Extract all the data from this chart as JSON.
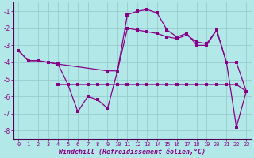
{
  "xlabel": "Windchill (Refroidissement éolien,°C)",
  "bg_color": "#b2e8e8",
  "line_color": "#880088",
  "grid_color": "#99cccc",
  "xlim": [
    -0.5,
    23.5
  ],
  "ylim": [
    -8.5,
    -0.5
  ],
  "yticks": [
    -8,
    -7,
    -6,
    -5,
    -4,
    -3,
    -2,
    -1
  ],
  "xticks": [
    0,
    1,
    2,
    3,
    4,
    5,
    6,
    7,
    8,
    9,
    10,
    11,
    12,
    13,
    14,
    15,
    16,
    17,
    18,
    19,
    20,
    21,
    22,
    23
  ],
  "line1_x": [
    0,
    1,
    2,
    3,
    4,
    5,
    6,
    7,
    8,
    9,
    10,
    11,
    12,
    13,
    14,
    15,
    16,
    17,
    18,
    19,
    20,
    21,
    22,
    23
  ],
  "line1_y": [
    -3.3,
    -3.9,
    -3.9,
    -4.0,
    -4.1,
    -5.3,
    -6.9,
    -6.0,
    -6.2,
    -6.7,
    -4.5,
    -1.2,
    -1.0,
    -0.9,
    -1.1,
    -2.1,
    -2.5,
    -2.3,
    -3.0,
    -3.0,
    -2.1,
    -4.0,
    -7.8,
    -5.7
  ],
  "line2_x": [
    0,
    1,
    2,
    3,
    4,
    9,
    10,
    11,
    12,
    13,
    14,
    15,
    16,
    17,
    18,
    19,
    20,
    21,
    22,
    23
  ],
  "line2_y": [
    -3.3,
    -3.9,
    -3.9,
    -4.0,
    -4.1,
    -4.5,
    -4.5,
    -2.0,
    -2.1,
    -2.2,
    -2.3,
    -2.5,
    -2.6,
    -2.4,
    -2.8,
    -2.9,
    -2.1,
    -4.0,
    -4.0,
    -5.7
  ],
  "line3_x": [
    4,
    5,
    6,
    7,
    8,
    9,
    10,
    11,
    12,
    13,
    14,
    15,
    16,
    17,
    18,
    19,
    20,
    21,
    22,
    23
  ],
  "line3_y": [
    -5.3,
    -5.3,
    -5.3,
    -5.3,
    -5.3,
    -5.3,
    -5.3,
    -5.3,
    -5.3,
    -5.3,
    -5.3,
    -5.3,
    -5.3,
    -5.3,
    -5.3,
    -5.3,
    -5.3,
    -5.3,
    -5.3,
    -5.7
  ],
  "marker_size": 2.5,
  "line_width": 0.9,
  "tick_fontsize": 5.0,
  "xlabel_fontsize": 6.0,
  "tick_color": "#880088",
  "spine_color": "#550055"
}
